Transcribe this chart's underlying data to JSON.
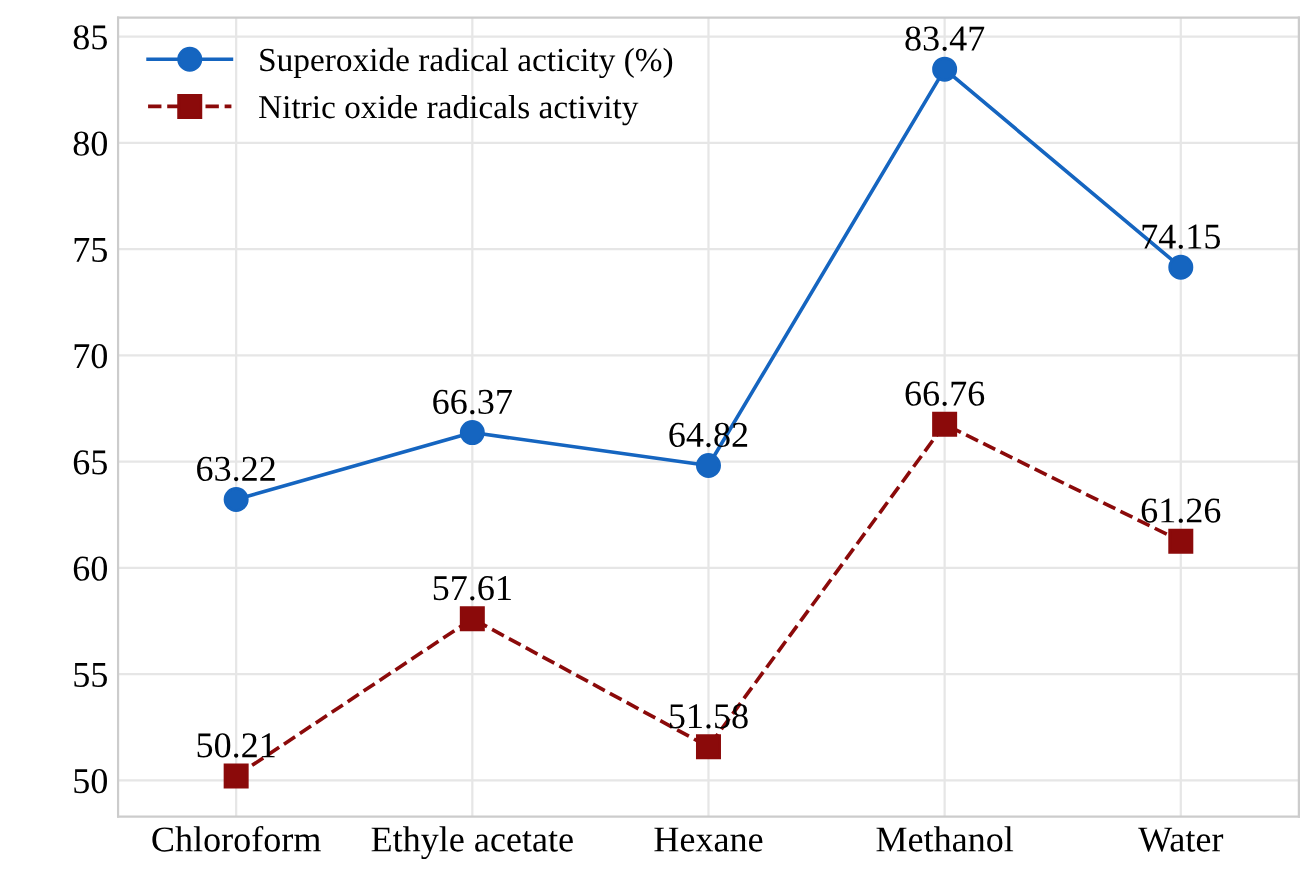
{
  "chart_data": {
    "type": "line",
    "categories": [
      "Chloroform",
      "Ethyle acetate",
      "Hexane",
      "Methanol",
      "Water"
    ],
    "series": [
      {
        "name": "Superoxide radical acticity (%)",
        "color": "#1565c0",
        "values": [
          63.22,
          66.37,
          64.82,
          83.47,
          74.15
        ],
        "marker": "circle",
        "line_style": "solid"
      },
      {
        "name": "Nitric oxide radicals activity",
        "color": "#8b0a0a",
        "values": [
          50.21,
          57.61,
          51.58,
          66.76,
          61.26
        ],
        "marker": "square",
        "line_style": "dashed"
      }
    ],
    "ylim": [
      48.3,
      85.9
    ],
    "yticks": [
      50,
      55,
      60,
      65,
      70,
      75,
      80,
      85
    ],
    "grid": true,
    "legend": "top left",
    "data_labels": true
  }
}
